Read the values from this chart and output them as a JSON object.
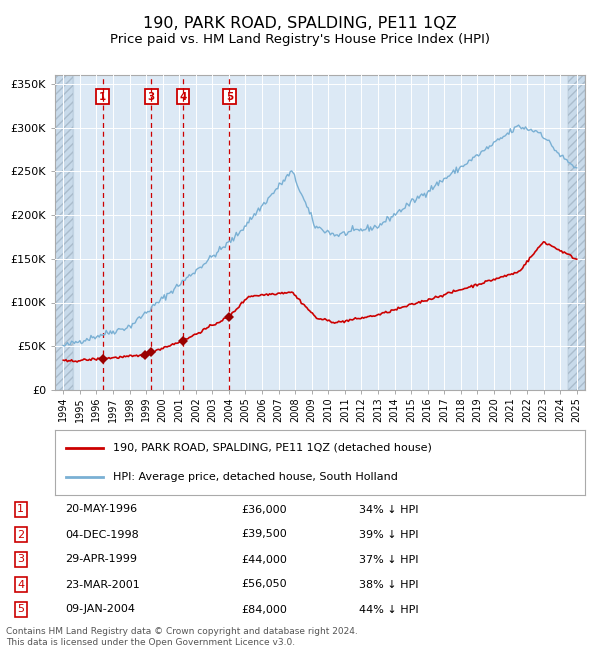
{
  "title": "190, PARK ROAD, SPALDING, PE11 1QZ",
  "subtitle": "Price paid vs. HM Land Registry's House Price Index (HPI)",
  "title_fontsize": 11.5,
  "subtitle_fontsize": 9.5,
  "background_color": "#dce9f5",
  "grid_color": "#ffffff",
  "red_line_color": "#cc0000",
  "blue_line_color": "#7ab0d4",
  "sale_marker_color": "#990000",
  "vline_color": "#cc0000",
  "hatch_bg_color": "#c8daea",
  "ylim": [
    0,
    360000
  ],
  "yticks": [
    0,
    50000,
    100000,
    150000,
    200000,
    250000,
    300000,
    350000
  ],
  "ytick_labels": [
    "£0",
    "£50K",
    "£100K",
    "£150K",
    "£200K",
    "£250K",
    "£300K",
    "£350K"
  ],
  "xtick_labels": [
    "1994",
    "1995",
    "1996",
    "1997",
    "1998",
    "1999",
    "2000",
    "2001",
    "2002",
    "2003",
    "2004",
    "2005",
    "2006",
    "2007",
    "2008",
    "2009",
    "2010",
    "2011",
    "2012",
    "2013",
    "2014",
    "2015",
    "2016",
    "2017",
    "2018",
    "2019",
    "2020",
    "2021",
    "2022",
    "2023",
    "2024",
    "2025"
  ],
  "sales": [
    {
      "num": 1,
      "year": 1996.38,
      "price": 36000
    },
    {
      "num": 2,
      "year": 1998.92,
      "price": 39500
    },
    {
      "num": 3,
      "year": 1999.32,
      "price": 44000
    },
    {
      "num": 4,
      "year": 2001.22,
      "price": 56050
    },
    {
      "num": 5,
      "year": 2004.03,
      "price": 84000
    }
  ],
  "vline_sales": [
    1,
    3,
    4,
    5
  ],
  "box_sales": {
    "1": 1996.38,
    "3": 1999.32,
    "4": 2001.22,
    "5": 2004.03
  },
  "legend_entries": [
    "190, PARK ROAD, SPALDING, PE11 1QZ (detached house)",
    "HPI: Average price, detached house, South Holland"
  ],
  "footer": "Contains HM Land Registry data © Crown copyright and database right 2024.\nThis data is licensed under the Open Government Licence v3.0.",
  "table_rows": [
    [
      "1",
      "20-MAY-1996",
      "£36,000",
      "34% ↓ HPI"
    ],
    [
      "2",
      "04-DEC-1998",
      "£39,500",
      "39% ↓ HPI"
    ],
    [
      "3",
      "29-APR-1999",
      "£44,000",
      "37% ↓ HPI"
    ],
    [
      "4",
      "23-MAR-2001",
      "£56,050",
      "38% ↓ HPI"
    ],
    [
      "5",
      "09-JAN-2004",
      "£84,000",
      "44% ↓ HPI"
    ]
  ]
}
